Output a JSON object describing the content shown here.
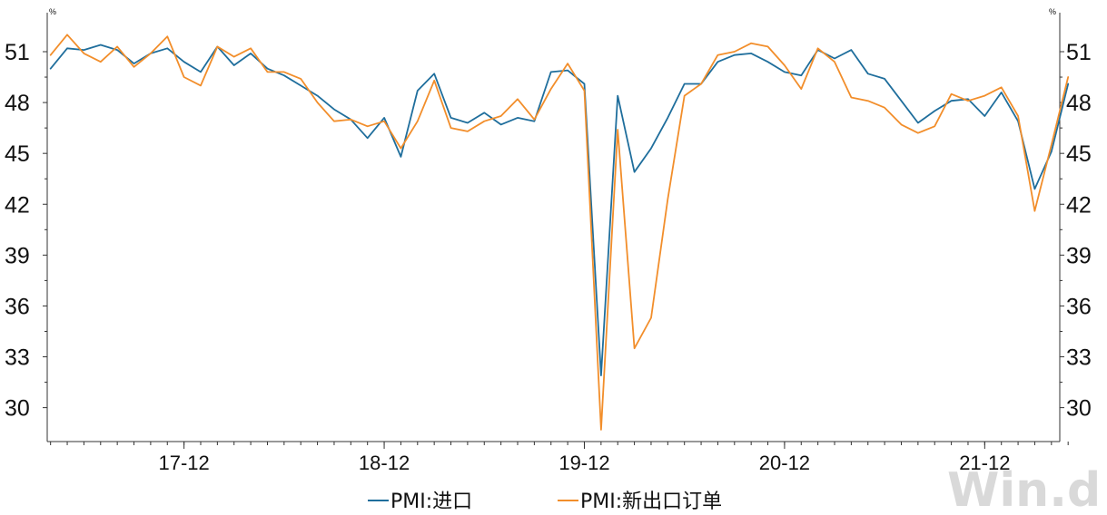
{
  "chart_data": {
    "type": "line",
    "unit_left": "%",
    "unit_right": "%",
    "y_ticks": [
      30,
      33,
      36,
      39,
      42,
      45,
      48,
      51
    ],
    "ylim": [
      28,
      53.3
    ],
    "x_ticks": [
      {
        "label": "17-12",
        "index": 8
      },
      {
        "label": "18-12",
        "index": 20
      },
      {
        "label": "19-12",
        "index": 32
      },
      {
        "label": "20-12",
        "index": 44
      },
      {
        "label": "21-12",
        "index": 56
      }
    ],
    "x_range": [
      -0.2,
      60.5
    ],
    "series": [
      {
        "name": "PMI:进口",
        "color": "#1f6e9c",
        "values": [
          50.0,
          51.2,
          51.1,
          51.4,
          51.1,
          50.3,
          50.9,
          51.2,
          50.4,
          49.8,
          51.3,
          50.2,
          50.9,
          50.0,
          49.6,
          49.0,
          48.4,
          47.6,
          47.0,
          45.9,
          47.1,
          44.8,
          48.7,
          49.7,
          47.1,
          46.8,
          47.4,
          46.7,
          47.1,
          46.9,
          49.8,
          49.9,
          49.1,
          31.9,
          48.4,
          43.9,
          45.3,
          47.1,
          49.1,
          49.1,
          50.4,
          50.8,
          50.9,
          50.4,
          49.8,
          49.6,
          51.1,
          50.6,
          51.1,
          49.7,
          49.4,
          48.1,
          46.8,
          47.5,
          48.1,
          48.2,
          47.2,
          48.6,
          46.9,
          42.9,
          45.1,
          49.1
        ]
      },
      {
        "name": "PMI:新出口订单",
        "color": "#f28e2b",
        "values": [
          50.8,
          52.0,
          50.9,
          50.4,
          51.3,
          50.1,
          50.9,
          51.9,
          49.5,
          49.0,
          51.3,
          50.7,
          51.2,
          49.8,
          49.8,
          49.4,
          48.0,
          46.9,
          47.0,
          46.6,
          46.9,
          45.3,
          46.9,
          49.3,
          46.5,
          46.3,
          46.9,
          47.2,
          48.2,
          47.0,
          48.8,
          50.3,
          48.7,
          28.7,
          46.4,
          33.5,
          35.3,
          42.3,
          48.4,
          49.1,
          50.8,
          51.0,
          51.5,
          51.3,
          50.2,
          48.8,
          51.2,
          50.4,
          48.3,
          48.1,
          47.7,
          46.7,
          46.2,
          46.6,
          48.5,
          48.1,
          48.4,
          48.9,
          47.2,
          41.6,
          45.5,
          49.5
        ]
      }
    ]
  },
  "legend": {
    "items": [
      {
        "label": "PMI:进口",
        "color": "#1f6e9c"
      },
      {
        "label": "PMI:新出口订单",
        "color": "#f28e2b"
      }
    ]
  },
  "watermark": "Win.d"
}
